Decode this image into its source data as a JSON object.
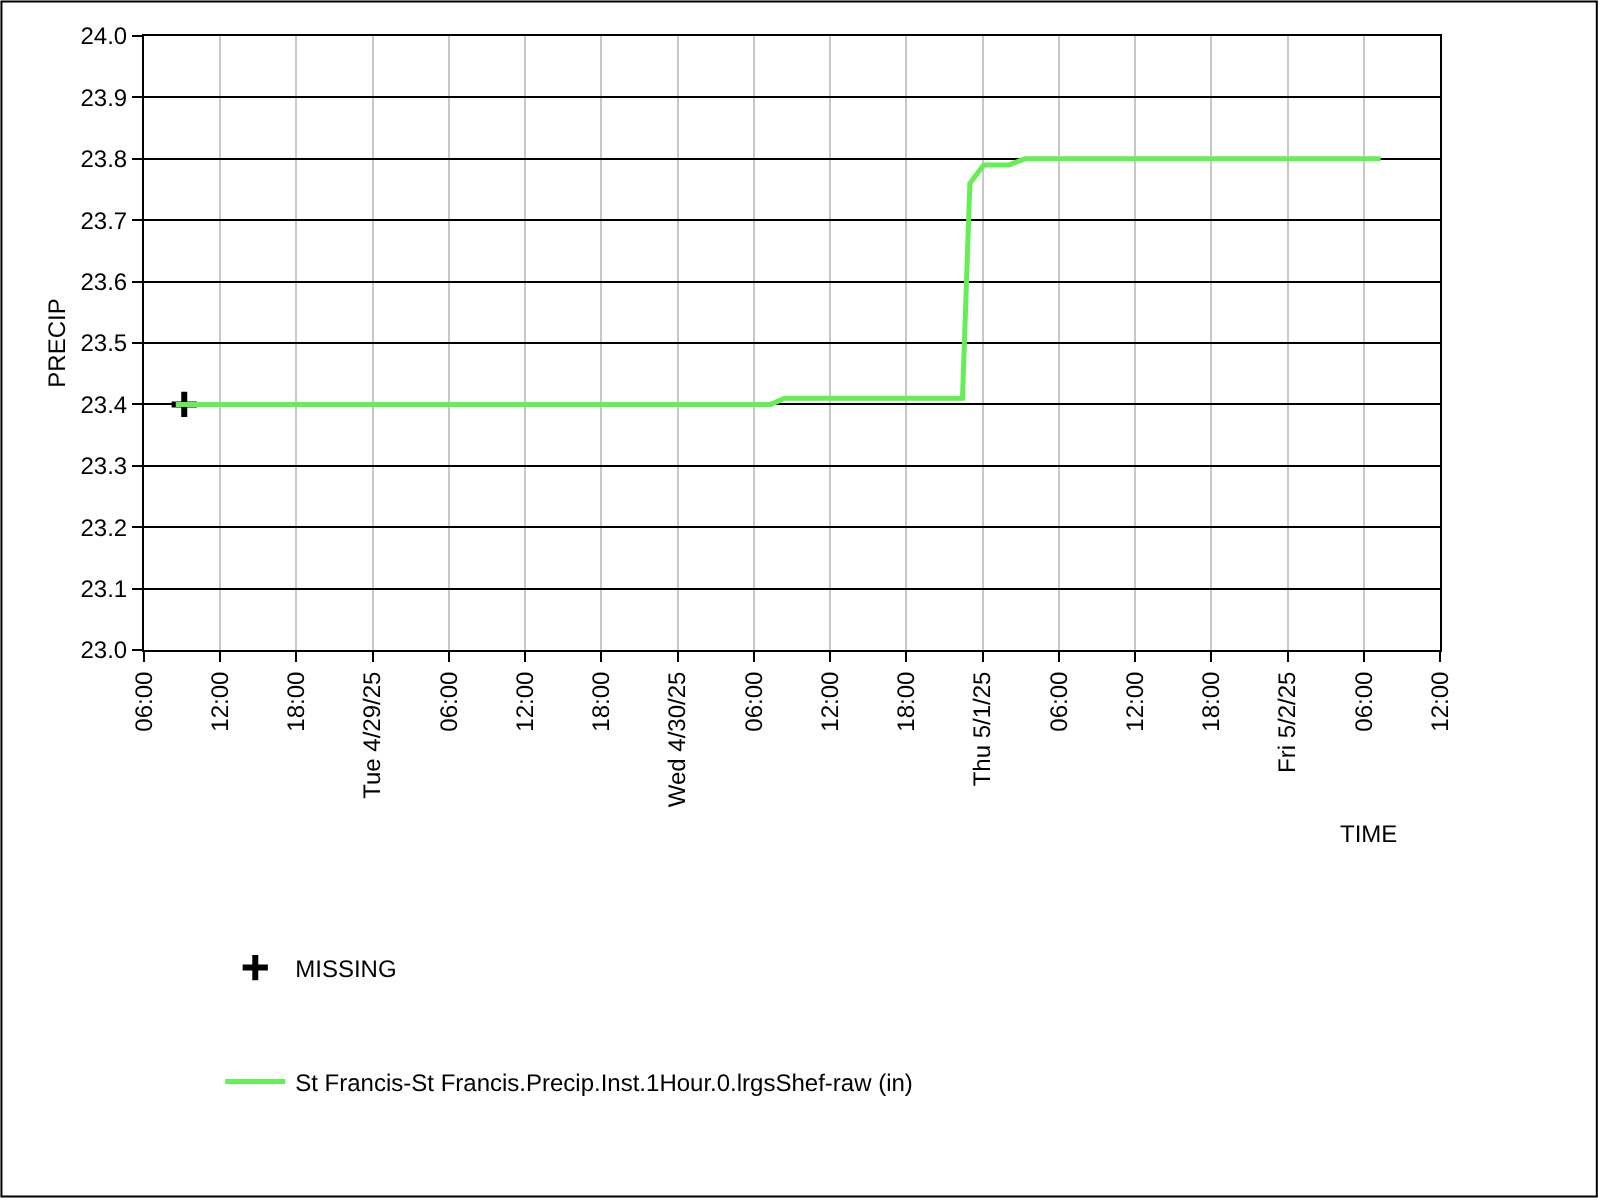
{
  "chart_data": {
    "type": "line",
    "xlabel": "TIME",
    "ylabel": "PRECIP",
    "xlim": [
      "--04-28T06:00",
      "--05-02T12:00"
    ],
    "xticks": [
      {
        "value": "--04-28T06:00",
        "label": "06:00"
      },
      {
        "value": "--04-28T12:00",
        "label": "12:00"
      },
      {
        "value": "--04-28T18:00",
        "label": "18:00"
      },
      {
        "value": "--04-29T00:00",
        "label": "Tue 4/29/25"
      },
      {
        "value": "--04-29T06:00",
        "label": "06:00"
      },
      {
        "value": "--04-29T12:00",
        "label": "12:00"
      },
      {
        "value": "--04-29T18:00",
        "label": "18:00"
      },
      {
        "value": "--04-30T00:00",
        "label": "Wed 4/30/25"
      },
      {
        "value": "--04-30T06:00",
        "label": "06:00"
      },
      {
        "value": "--04-30T12:00",
        "label": "12:00"
      },
      {
        "value": "--04-30T18:00",
        "label": "18:00"
      },
      {
        "value": "--05-01T00:00",
        "label": "Thu 5/1/25"
      },
      {
        "value": "--05-01T06:00",
        "label": "06:00"
      },
      {
        "value": "--05-01T12:00",
        "label": "12:00"
      },
      {
        "value": "--05-01T18:00",
        "label": "18:00"
      },
      {
        "value": "--05-02T00:00",
        "label": "Fri 5/2/25"
      },
      {
        "value": "--05-02T06:00",
        "label": "06:00"
      },
      {
        "value": "--05-02T12:00",
        "label": "12:00"
      }
    ],
    "ylim": [
      23.0,
      24.0
    ],
    "yticks": [
      {
        "value": 23.0,
        "label": "23.0"
      },
      {
        "value": 23.1,
        "label": "23.1"
      },
      {
        "value": 23.2,
        "label": "23.2"
      },
      {
        "value": 23.3,
        "label": "23.3"
      },
      {
        "value": 23.4,
        "label": "23.4"
      },
      {
        "value": 23.5,
        "label": "23.5"
      },
      {
        "value": 23.6,
        "label": "23.6"
      },
      {
        "value": 23.7,
        "label": "23.7"
      },
      {
        "value": 23.8,
        "label": "23.8"
      },
      {
        "value": 23.9,
        "label": "23.9"
      },
      {
        "value": 24.0,
        "label": "24.0"
      }
    ],
    "grid": true,
    "legend": "bottom left",
    "series": [
      {
        "name": "MISSING",
        "type": "scatter",
        "marker": "cross",
        "color": "#000000",
        "x": [
          "--04-28T09:10"
        ],
        "values": [
          23.4
        ]
      },
      {
        "name": "St Francis-St Francis.Precip.Inst.1Hour.0.lrgsShef-raw (in)",
        "marker": "none",
        "color": "#66ee55",
        "x": [
          "--04-28T08:30",
          "--04-30T07:20",
          "--04-30T08:25",
          "--04-30T22:25",
          "--04-30T23:00",
          "--05-01T00:05",
          "--05-01T02:05",
          "--05-01T03:20",
          "--05-02T07:20"
        ],
        "values": [
          23.4,
          23.4,
          23.41,
          23.41,
          23.76,
          23.79,
          23.79,
          23.8,
          23.8
        ]
      }
    ]
  }
}
